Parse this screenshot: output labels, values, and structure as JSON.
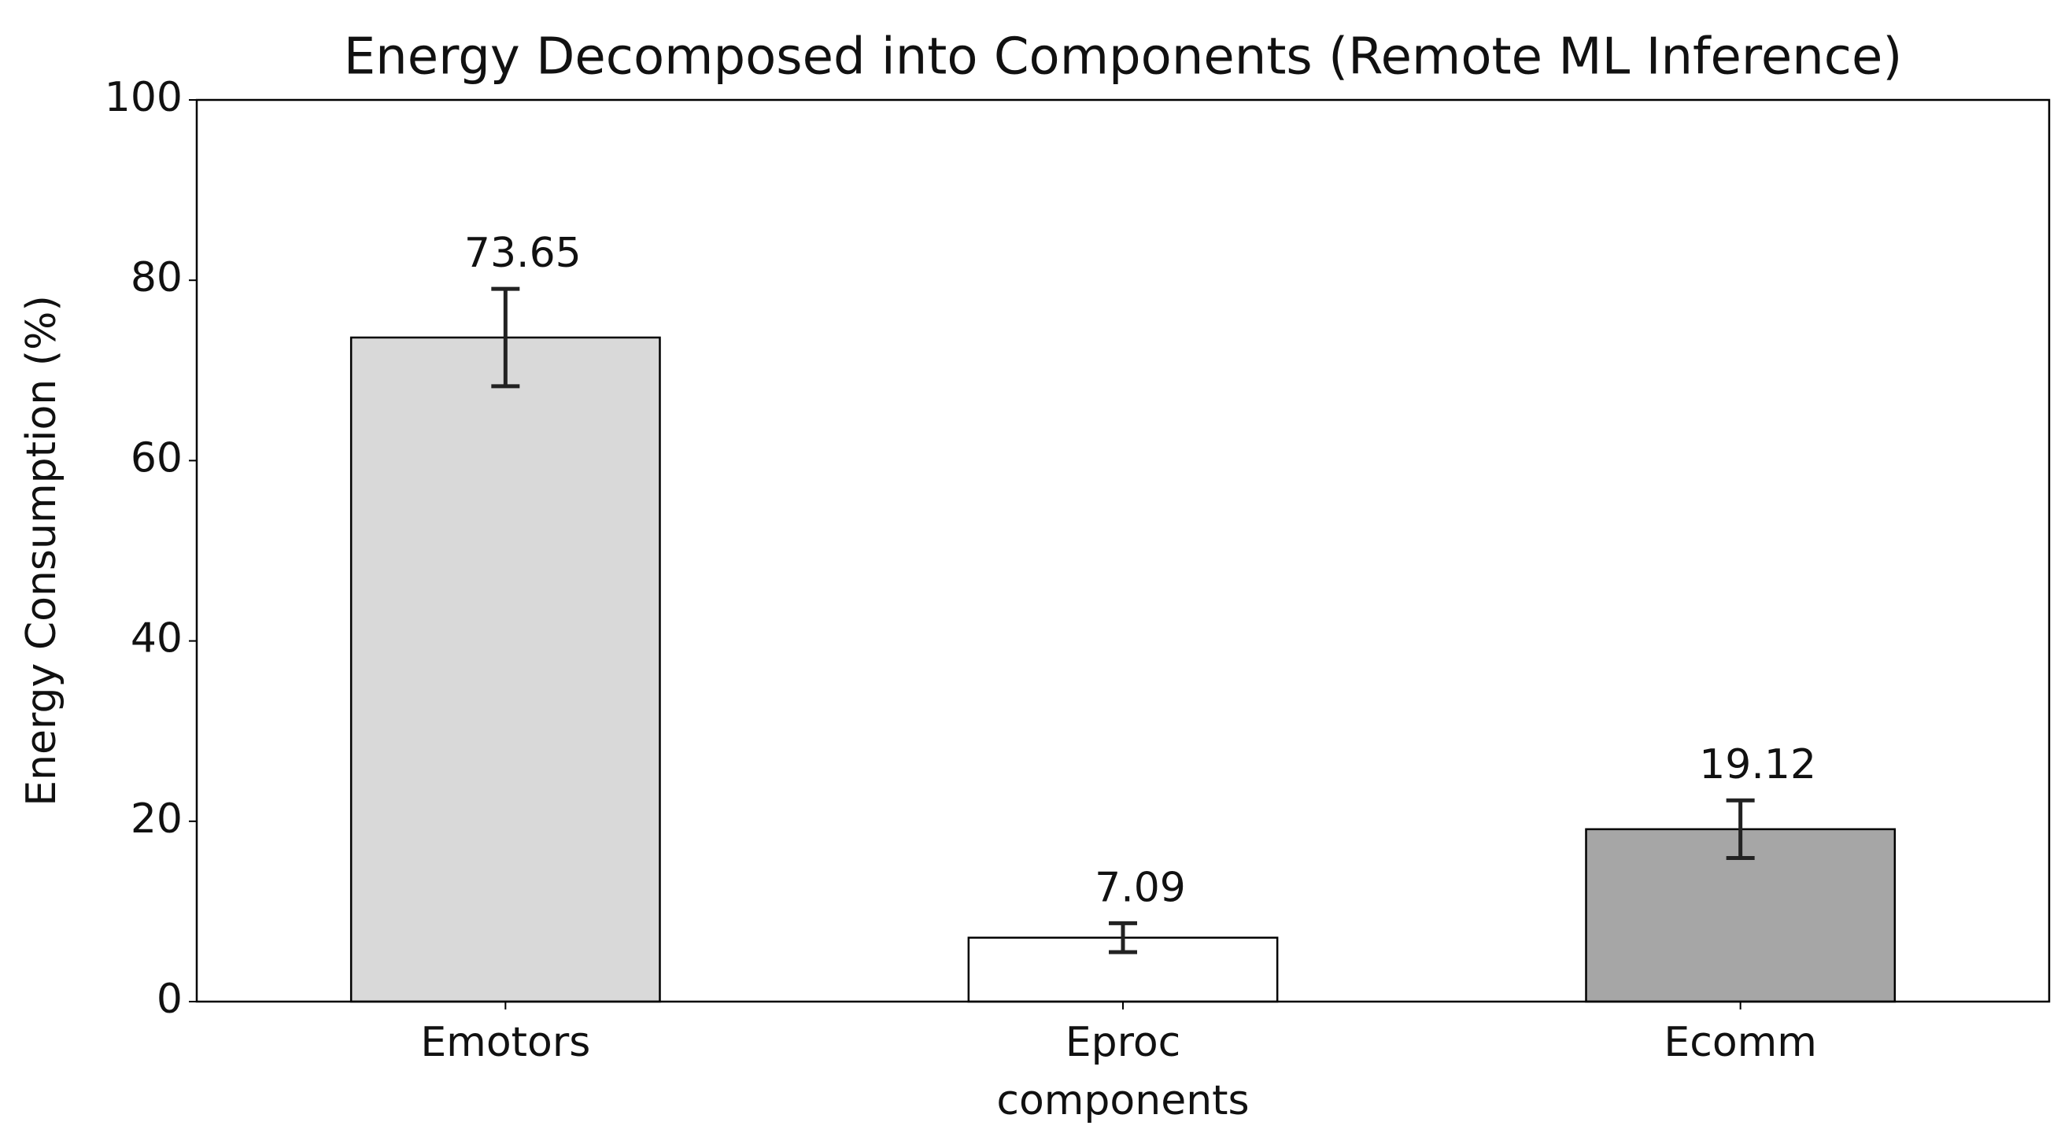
{
  "chart_data": {
    "type": "bar",
    "title": "Energy Decomposed into Components (Remote ML Inference)",
    "xlabel": "components",
    "ylabel": "Energy Consumption (%)",
    "categories": [
      "Emotors",
      "Eproc",
      "Ecomm"
    ],
    "values": [
      73.65,
      7.09,
      19.12
    ],
    "errors": [
      5.4,
      1.6,
      3.2
    ],
    "colors": [
      "#d9d9d9",
      "#ffffff",
      "#a6a6a6"
    ],
    "ylim": [
      0,
      100
    ],
    "yticks": [
      0,
      20,
      40,
      60,
      80,
      100
    ],
    "grid": false
  }
}
